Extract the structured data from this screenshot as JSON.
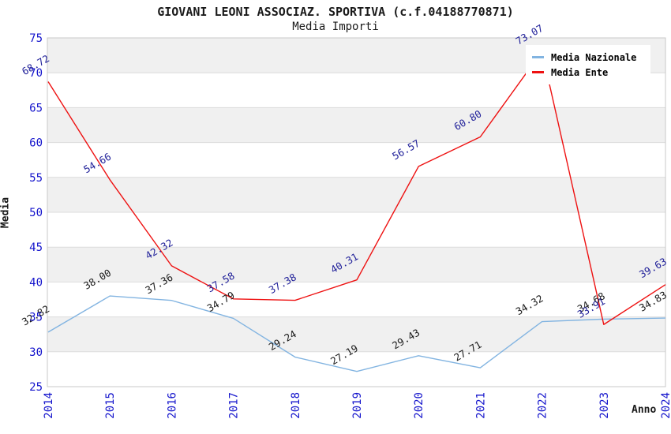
{
  "header": {
    "title": "GIOVANI LEONI ASSOCIAZ. SPORTIVA (c.f.04188770871)",
    "subtitle": "Media Importi"
  },
  "axes": {
    "y_label": "Media",
    "x_label": "Anno",
    "y_ticks": [
      25,
      30,
      35,
      40,
      45,
      50,
      55,
      60,
      65,
      70,
      75
    ],
    "x_ticks": [
      "2014",
      "2015",
      "2016",
      "2017",
      "2018",
      "2019",
      "2020",
      "2021",
      "2022",
      "2023",
      "2024"
    ]
  },
  "legend": {
    "items": [
      {
        "label": "Media Nazionale",
        "color": "#82b4e1"
      },
      {
        "label": "Media Ente",
        "color": "#ee1111"
      }
    ]
  },
  "colors": {
    "tick_label": "#1414cc",
    "band": "#f0f0f0",
    "grid_line": "#dcdcdc",
    "plot_border": "#c8c8c8",
    "title_text": "#1a1a1a"
  },
  "chart_data": {
    "type": "line",
    "title": "GIOVANI LEONI ASSOCIAZ. SPORTIVA (c.f.04188770871)",
    "subtitle": "Media Importi",
    "xlabel": "Anno",
    "ylabel": "Media",
    "x": [
      2014,
      2015,
      2016,
      2017,
      2018,
      2019,
      2020,
      2021,
      2022,
      2023,
      2024
    ],
    "series": [
      {
        "name": "Media Nazionale",
        "color": "#82b4e1",
        "label_color": "#1a1a1a",
        "values": [
          32.82,
          38.0,
          37.36,
          34.79,
          29.24,
          27.19,
          29.43,
          27.71,
          34.32,
          34.68,
          34.83
        ]
      },
      {
        "name": "Media Ente",
        "color": "#ee1111",
        "label_color": "#22229a",
        "values": [
          68.72,
          54.66,
          42.32,
          37.58,
          37.38,
          40.31,
          56.57,
          60.8,
          73.07,
          33.91,
          39.63
        ]
      }
    ],
    "ylim": [
      25,
      75
    ],
    "y_tick_step": 5,
    "grid": true,
    "band_fill": "alternating",
    "legend_position": "top-right",
    "data_labels": true,
    "data_label_rotation": -30,
    "x_tick_rotation": -90
  }
}
